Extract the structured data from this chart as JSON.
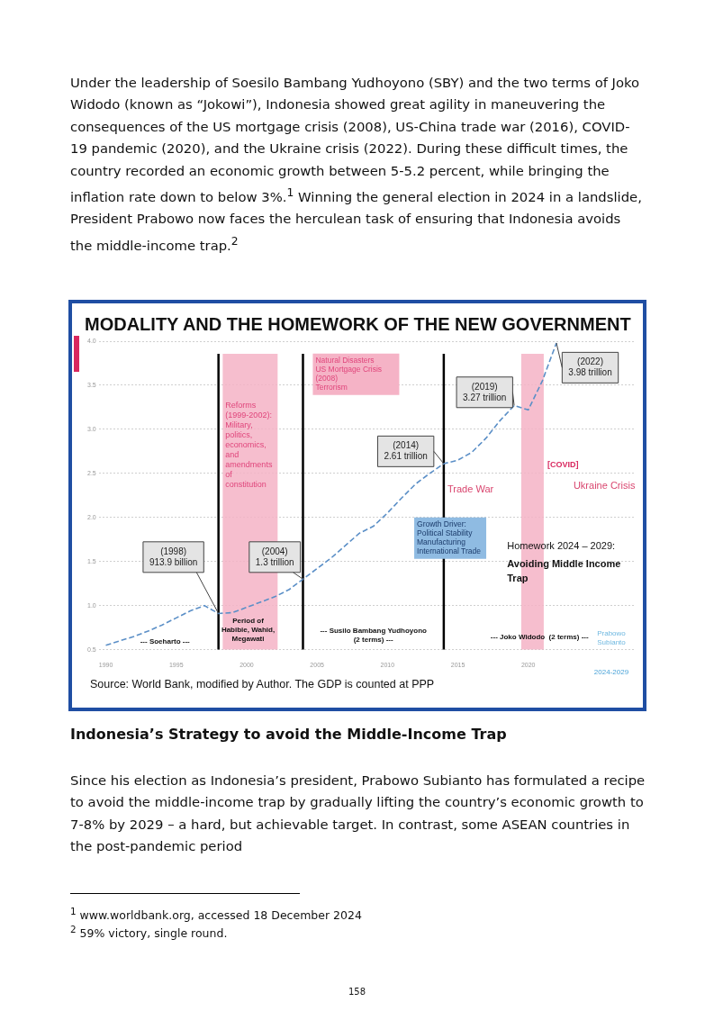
{
  "chart_data": {
    "type": "line",
    "title": "MODALITY AND THE HOMEWORK OF THE NEW GOVERNMENT",
    "x": [
      1990,
      1991,
      1992,
      1993,
      1994,
      1995,
      1996,
      1997,
      1998,
      1999,
      2000,
      2001,
      2002,
      2003,
      2004,
      2005,
      2006,
      2007,
      2008,
      2009,
      2010,
      2011,
      2012,
      2013,
      2014,
      2015,
      2016,
      2017,
      2018,
      2019,
      2020,
      2021,
      2022
    ],
    "series": [
      {
        "color": "#5b8fc7",
        "values": [
          0.55,
          0.6,
          0.65,
          0.71,
          0.78,
          0.86,
          0.94,
          1.0,
          0.91,
          0.92,
          0.98,
          1.04,
          1.1,
          1.18,
          1.3,
          1.42,
          1.54,
          1.68,
          1.82,
          1.9,
          2.05,
          2.22,
          2.38,
          2.5,
          2.61,
          2.65,
          2.74,
          2.9,
          3.1,
          3.27,
          3.22,
          3.55,
          3.98
        ]
      }
    ],
    "xlim": [
      1989.5,
      2027.5
    ],
    "xticks": [
      1990,
      1995,
      2000,
      2005,
      2010,
      2015,
      2020
    ],
    "ylim": [
      0.5,
      4.0
    ],
    "yticks": [
      {
        "value": 0.5,
        "label": "0.5"
      },
      {
        "value": 1.0,
        "label": "1.0"
      },
      {
        "value": 1.5,
        "label": "1.5"
      },
      {
        "value": 2.0,
        "label": "2.0"
      },
      {
        "value": 2.5,
        "label": "2.5"
      },
      {
        "value": 3.0,
        "label": "3.0"
      },
      {
        "value": 3.5,
        "label": "3.5"
      },
      {
        "value": 4.0,
        "label": "4.0"
      }
    ],
    "grid": "y",
    "legend": false,
    "marker": "none",
    "line_style": "dashed",
    "ref_lines": [
      {
        "axis": "x",
        "value": 1998,
        "color": "#000000"
      },
      {
        "axis": "x",
        "value": 2004,
        "color": "#000000"
      },
      {
        "axis": "x",
        "value": 2014,
        "color": "#000000"
      }
    ],
    "bands": [
      {
        "axis": "x",
        "from": 1998.3,
        "to": 2002.2,
        "label": "Reforms\n(1999-2002):\nMilitary,\npolitics,\neconomics,\nand\namendments\nof\nconstitution",
        "color": "#f5b3c6"
      },
      {
        "axis": "x",
        "from": 2019.5,
        "to": 2021.1,
        "label": "[COVID]",
        "color": "#f5b3c6"
      }
    ],
    "annotations": [
      "Under the leadership of Soesilo Bambang Yudhoyono (SBY) and the two terms of Joko Widodo (known as “Jokowi”), Indonesia showed great agility in maneuvering the consequences of the US mortgage crisis (2008), US-China trade war (2016), COVID-19 pandemic (2020), and the Ukraine crisis (2022). During these difficult times, the country recorded an economic growth between 5-5.2 percent, while bringing the inflation rate down to below 3%.$^{1}$ Winning the general election in 2024 in a landslide, President Prabowo now faces the herculean task of ensuring that Indonesia avoids the middle-income trap.$^{2}$",
      "Indonesia’s Strategy to avoid the Middle-Income Trap",
      "Since his election as Indonesia’s president, Prabowo Subianto has formulated a recipe to avoid the middle-income trap by gradually lifting the country’s economic growth to 7-8% by 2029 – a hard, but achievable target. In contrast, some ASEAN countries in the post-pandemic period",
      "$^{1}$ www.worldbank.org, accessed 18 December 2024",
      "$^{2}$ 59% victory, single round.",
      "158",
      "Source: World Bank, modified by Author. The GDP is counted at PPP",
      {
        "text": "(1998)\n913.9 billion",
        "x": 1998,
        "y": 0.91
      },
      {
        "text": "(2004)\n1.3 trillion",
        "x": 2004,
        "y": 1.3
      },
      {
        "text": "(2014)\n2.61 trillion",
        "x": 2014,
        "y": 2.61
      },
      {
        "text": "(2019)\n3.27 trillion",
        "x": 2019,
        "y": 3.27
      },
      {
        "text": "(2022)\n3.98 trillion",
        "x": 2022,
        "y": 3.98
      },
      "Natural Disasters\nUS Mortgage Crisis\n(2008)\nTerrorism",
      "Growth Driver:\nPolitical Stability\nManufacturing\nInternational Trade",
      "Trade War",
      "Ukraine Crisis",
      "Homework 2024 – 2029:",
      "Avoiding Middle Income\nTrap",
      "--- Soeharto ---",
      "Period of\nHabibie, Wahid,\nMegawati",
      "--- Susilo Bambang Yudhoyono\n(2 terms) ---",
      "--- Joko Widodo  (2 terms) ---",
      "Prabowo\nSubianto",
      "2024-2029"
    ]
  }
}
